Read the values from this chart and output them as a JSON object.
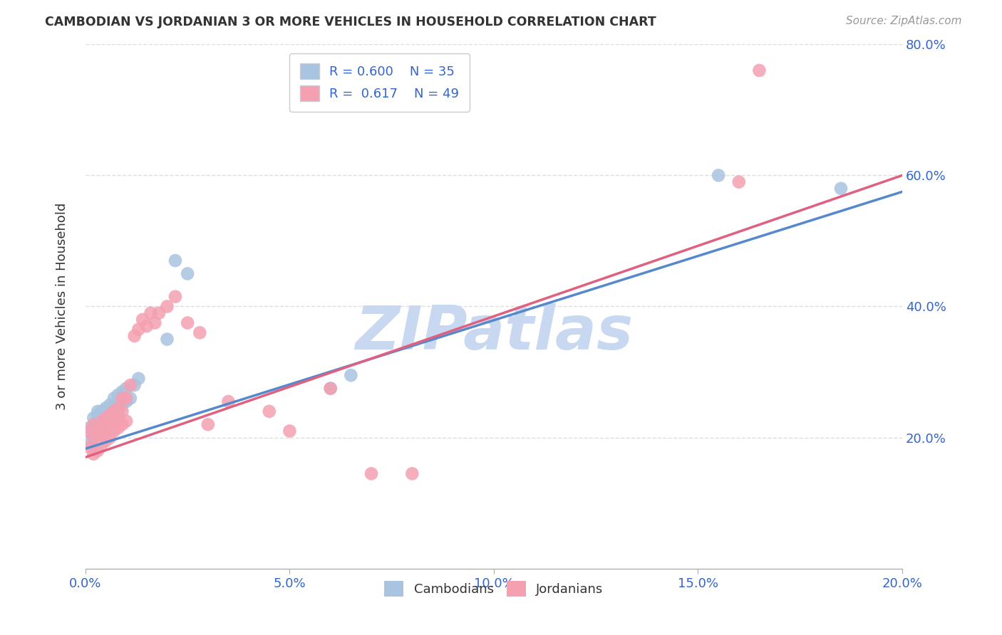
{
  "title": "CAMBODIAN VS JORDANIAN 3 OR MORE VEHICLES IN HOUSEHOLD CORRELATION CHART",
  "source": "Source: ZipAtlas.com",
  "ylabel": "3 or more Vehicles in Household",
  "xlim": [
    0.0,
    0.2
  ],
  "ylim": [
    0.0,
    0.8
  ],
  "cambodian_R": "0.600",
  "cambodian_N": "35",
  "jordanian_R": "0.617",
  "jordanian_N": "49",
  "cambodian_color": "#a8c4e0",
  "jordanian_color": "#f4a0b0",
  "cambodian_line_color": "#5588cc",
  "jordanian_line_color": "#e06080",
  "watermark": "ZIPatlas",
  "watermark_color": "#c8d8f0",
  "background_color": "#ffffff",
  "grid_color": "#dddddd",
  "cambodian_x": [
    0.001,
    0.001,
    0.002,
    0.002,
    0.002,
    0.003,
    0.003,
    0.003,
    0.004,
    0.004,
    0.004,
    0.005,
    0.005,
    0.005,
    0.006,
    0.006,
    0.006,
    0.007,
    0.007,
    0.008,
    0.008,
    0.009,
    0.009,
    0.01,
    0.01,
    0.011,
    0.012,
    0.013,
    0.02,
    0.022,
    0.025,
    0.06,
    0.065,
    0.155,
    0.185
  ],
  "cambodian_y": [
    0.195,
    0.215,
    0.2,
    0.215,
    0.23,
    0.22,
    0.235,
    0.24,
    0.225,
    0.24,
    0.215,
    0.225,
    0.245,
    0.21,
    0.235,
    0.25,
    0.23,
    0.245,
    0.26,
    0.24,
    0.265,
    0.25,
    0.27,
    0.255,
    0.275,
    0.26,
    0.28,
    0.29,
    0.35,
    0.47,
    0.45,
    0.275,
    0.295,
    0.6,
    0.58
  ],
  "jordanian_x": [
    0.001,
    0.001,
    0.002,
    0.002,
    0.002,
    0.003,
    0.003,
    0.003,
    0.004,
    0.004,
    0.004,
    0.005,
    0.005,
    0.005,
    0.006,
    0.006,
    0.006,
    0.007,
    0.007,
    0.007,
    0.008,
    0.008,
    0.008,
    0.009,
    0.009,
    0.009,
    0.01,
    0.01,
    0.011,
    0.012,
    0.013,
    0.014,
    0.015,
    0.016,
    0.017,
    0.018,
    0.02,
    0.022,
    0.025,
    0.028,
    0.03,
    0.035,
    0.045,
    0.05,
    0.06,
    0.07,
    0.08,
    0.16,
    0.165
  ],
  "jordanian_y": [
    0.185,
    0.21,
    0.175,
    0.2,
    0.22,
    0.18,
    0.205,
    0.215,
    0.19,
    0.205,
    0.225,
    0.195,
    0.215,
    0.23,
    0.2,
    0.22,
    0.235,
    0.21,
    0.225,
    0.24,
    0.215,
    0.23,
    0.245,
    0.22,
    0.24,
    0.26,
    0.225,
    0.26,
    0.28,
    0.355,
    0.365,
    0.38,
    0.37,
    0.39,
    0.375,
    0.39,
    0.4,
    0.415,
    0.375,
    0.36,
    0.22,
    0.255,
    0.24,
    0.21,
    0.275,
    0.145,
    0.145,
    0.59,
    0.76
  ],
  "cam_line_x0": 0.0,
  "cam_line_y0": 0.183,
  "cam_line_x1": 0.2,
  "cam_line_y1": 0.575,
  "jor_line_x0": 0.0,
  "jor_line_y0": 0.17,
  "jor_line_x1": 0.2,
  "jor_line_y1": 0.6
}
